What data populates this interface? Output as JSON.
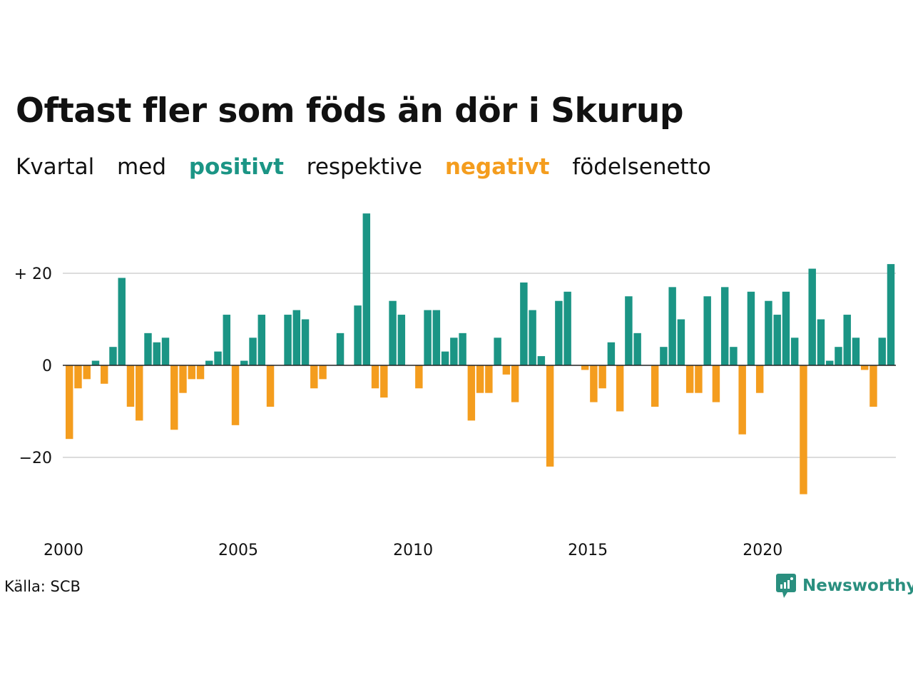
{
  "title": "Oftast fler som föds än dör i Skurup",
  "subtitle": {
    "w1": "Kvartal",
    "w2": "med",
    "positive": "positivt",
    "w3": "respektive",
    "negative": "negativt",
    "w4": "födelsenetto"
  },
  "source": "Källa: SCB",
  "logo": {
    "text": "Newsworthy",
    "icon": "newsworthy-chart-bubble-icon"
  },
  "colors": {
    "positive": "#1b9585",
    "negative": "#f49d1e",
    "grid": "#dcdcdc",
    "zero_line": "#222222"
  },
  "chart_data": {
    "type": "bar",
    "title": "Oftast fler som föds än dör i Skurup",
    "xlabel": "",
    "ylabel": "",
    "ylim": [
      -33,
      33
    ],
    "grid": true,
    "start_year": 2000,
    "start_quarter": 1,
    "y_ticks": [
      20,
      0,
      -20
    ],
    "y_tick_labels": [
      "+ 20",
      "0",
      "−20"
    ],
    "x_ticks": [
      2000,
      2005,
      2010,
      2015,
      2020
    ],
    "x_tick_labels": [
      "2000",
      "2005",
      "2010",
      "2015",
      "2020"
    ],
    "values": [
      -16,
      -5,
      -3,
      1,
      -4,
      4,
      19,
      -9,
      -12,
      7,
      5,
      6,
      -14,
      -6,
      -3,
      -3,
      1,
      3,
      11,
      -13,
      1,
      6,
      11,
      -9,
      0,
      11,
      12,
      10,
      -5,
      -3,
      0,
      7,
      0,
      13,
      33,
      -5,
      -7,
      14,
      11,
      0,
      -5,
      12,
      12,
      3,
      6,
      7,
      -12,
      -6,
      -6,
      6,
      -2,
      -8,
      18,
      12,
      2,
      -22,
      14,
      16,
      0,
      -1,
      -8,
      -5,
      5,
      -10,
      15,
      7,
      0,
      -9,
      4,
      17,
      10,
      -6,
      -6,
      15,
      -8,
      17,
      4,
      -15,
      16,
      -6,
      14,
      11,
      16,
      6,
      -28,
      21,
      10,
      1,
      4,
      11,
      6,
      -1,
      -9,
      6,
      22
    ]
  }
}
